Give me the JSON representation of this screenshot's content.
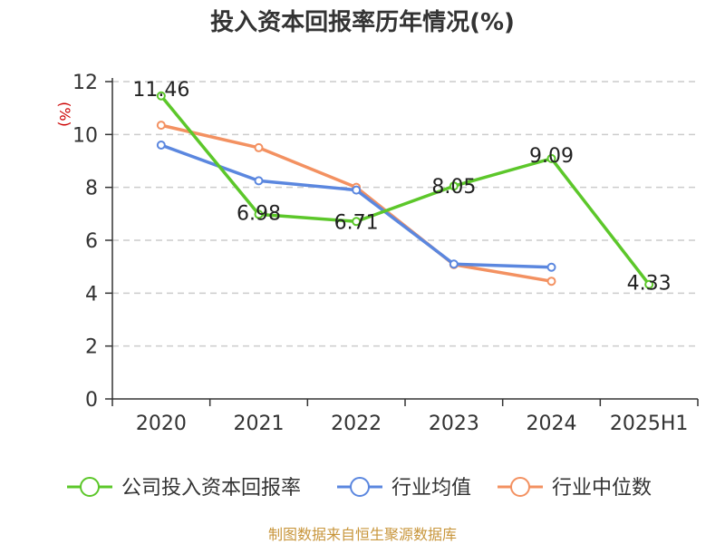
{
  "chart_data": {
    "type": "line",
    "title": "投入资本回报率历年情况(%)",
    "ylabel": "(%)",
    "categories": [
      "2020",
      "2021",
      "2022",
      "2023",
      "2024",
      "2025H1"
    ],
    "ylim": [
      0,
      12
    ],
    "yticks": [
      "0",
      "2",
      "4",
      "6",
      "8",
      "10",
      "12"
    ],
    "grid": true,
    "legend_position": "bottom",
    "series": [
      {
        "name": "公司投入资本回报率",
        "color": "#5cc72a",
        "values": [
          11.46,
          6.98,
          6.71,
          8.05,
          9.09,
          4.33
        ],
        "labels": [
          "11.46",
          "6.98",
          "6.71",
          "8.05",
          "9.09",
          "4.33"
        ]
      },
      {
        "name": "行业均值",
        "color": "#5b87df",
        "values": [
          9.6,
          8.25,
          7.9,
          5.1,
          4.98,
          null
        ]
      },
      {
        "name": "行业中位数",
        "color": "#f39161",
        "values": [
          10.35,
          9.5,
          8.0,
          5.08,
          4.45,
          null
        ]
      }
    ]
  },
  "source": "制图数据来自恒生聚源数据库"
}
